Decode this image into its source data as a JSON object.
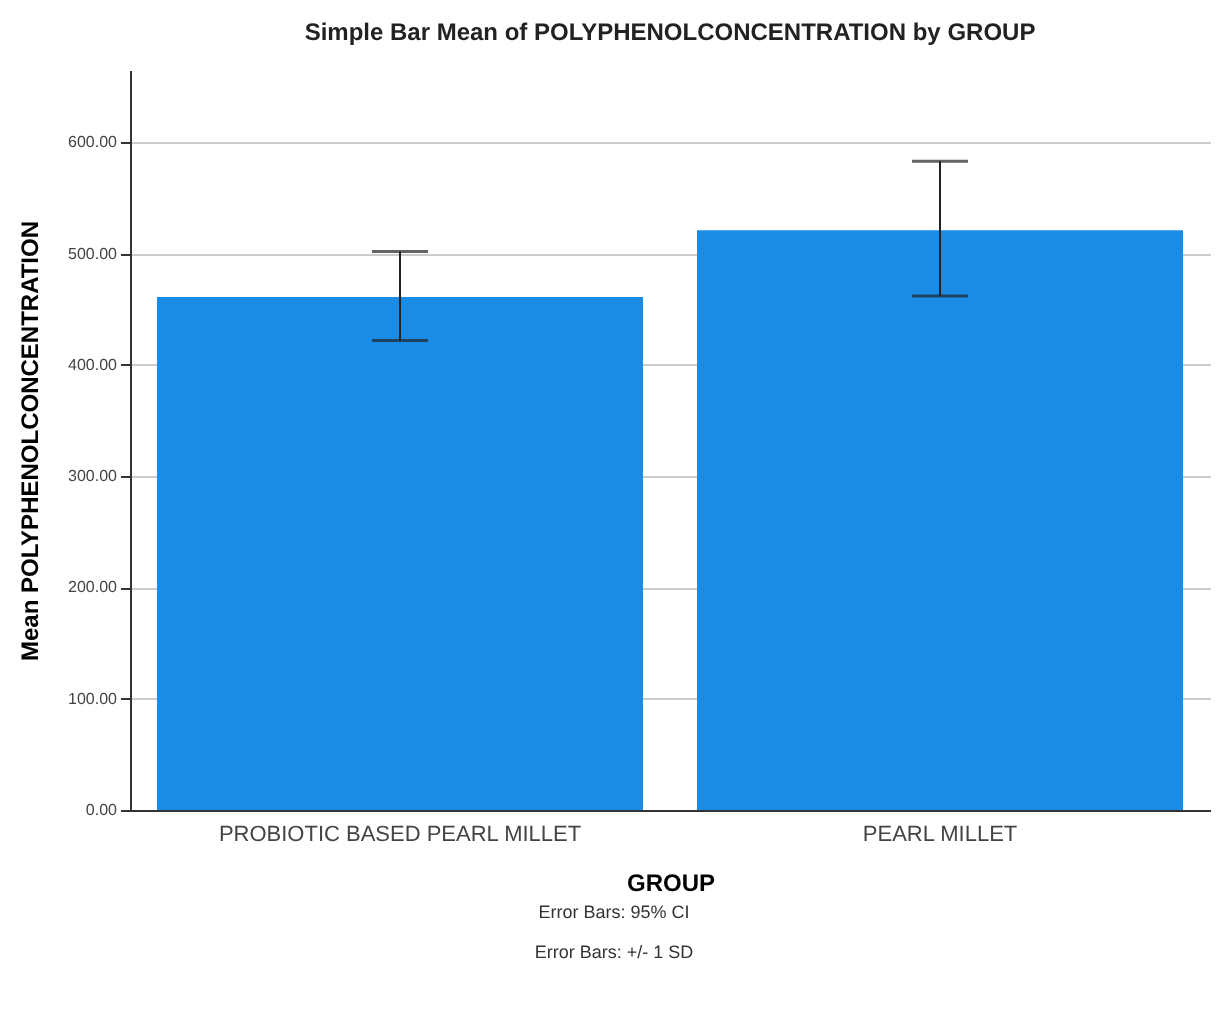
{
  "chart_data": {
    "type": "bar",
    "title": "Simple Bar Mean of POLYPHENOLCONCENTRATION by GROUP",
    "xlabel": "GROUP",
    "ylabel": "Mean POLYPHENOLCONCENTRATION",
    "categories": [
      "PROBIOTIC BASED PEARL MILLET",
      "PEARL MILLET"
    ],
    "values": [
      461,
      521
    ],
    "color": "#1a8ce6",
    "errors": [
      [
        422,
        502
      ],
      [
        462,
        583
      ]
    ],
    "ylim": [
      0,
      665
    ],
    "yticks": [
      {
        "value": 0,
        "label": "0.00"
      },
      {
        "value": 100,
        "label": "100.00"
      },
      {
        "value": 200,
        "label": "200.00"
      },
      {
        "value": 300,
        "label": "300.00"
      },
      {
        "value": 400,
        "label": "400.00"
      },
      {
        "value": 500,
        "label": "500.00"
      },
      {
        "value": 600,
        "label": "600.00"
      }
    ],
    "grid": "y",
    "annotations": [
      "Error Bars: 95% CI",
      "Error Bars: +/- 1 SD"
    ]
  }
}
